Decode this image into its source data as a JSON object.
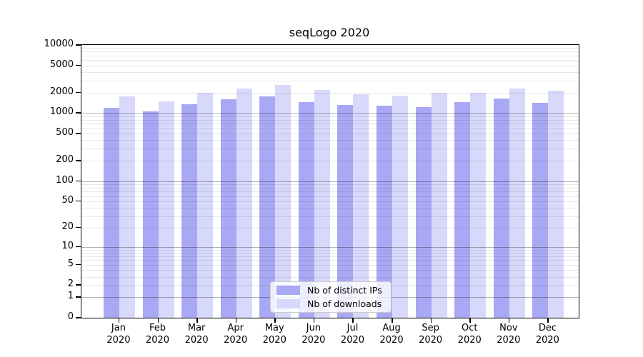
{
  "title": "seqLogo 2020",
  "chart_data": {
    "type": "bar",
    "title": "seqLogo 2020",
    "categories": [
      "Jan",
      "Feb",
      "Mar",
      "Apr",
      "May",
      "Jun",
      "Jul",
      "Aug",
      "Sep",
      "Oct",
      "Nov",
      "Dec"
    ],
    "x_year_line": "2020",
    "series": [
      {
        "name": "Nb of distinct IPs",
        "color": "#a8a8f4",
        "values": [
          1210,
          1050,
          1350,
          1600,
          1760,
          1450,
          1320,
          1290,
          1220,
          1450,
          1640,
          1420
        ]
      },
      {
        "name": "Nb of downloads",
        "color": "#d8d8fa",
        "values": [
          1750,
          1490,
          1980,
          2290,
          2590,
          2180,
          1890,
          1800,
          1980,
          1980,
          2290,
          2130
        ]
      }
    ],
    "y_scale": "log1p",
    "ylim": [
      0,
      10000
    ],
    "y_ticks": [
      0,
      1,
      2,
      5,
      10,
      20,
      50,
      100,
      200,
      500,
      1000,
      2000,
      5000,
      10000
    ],
    "grid": true,
    "legend_position": "inside-bottom-center"
  },
  "colors": {
    "bar_distinct_ips": "#a8a8f4",
    "bar_downloads": "#d8d8fa",
    "grid_major": "rgba(0,0,0,0.30)",
    "grid_minor": "rgba(0,0,0,0.09)",
    "axis": "#000000",
    "legend_border": "#cccccc"
  }
}
